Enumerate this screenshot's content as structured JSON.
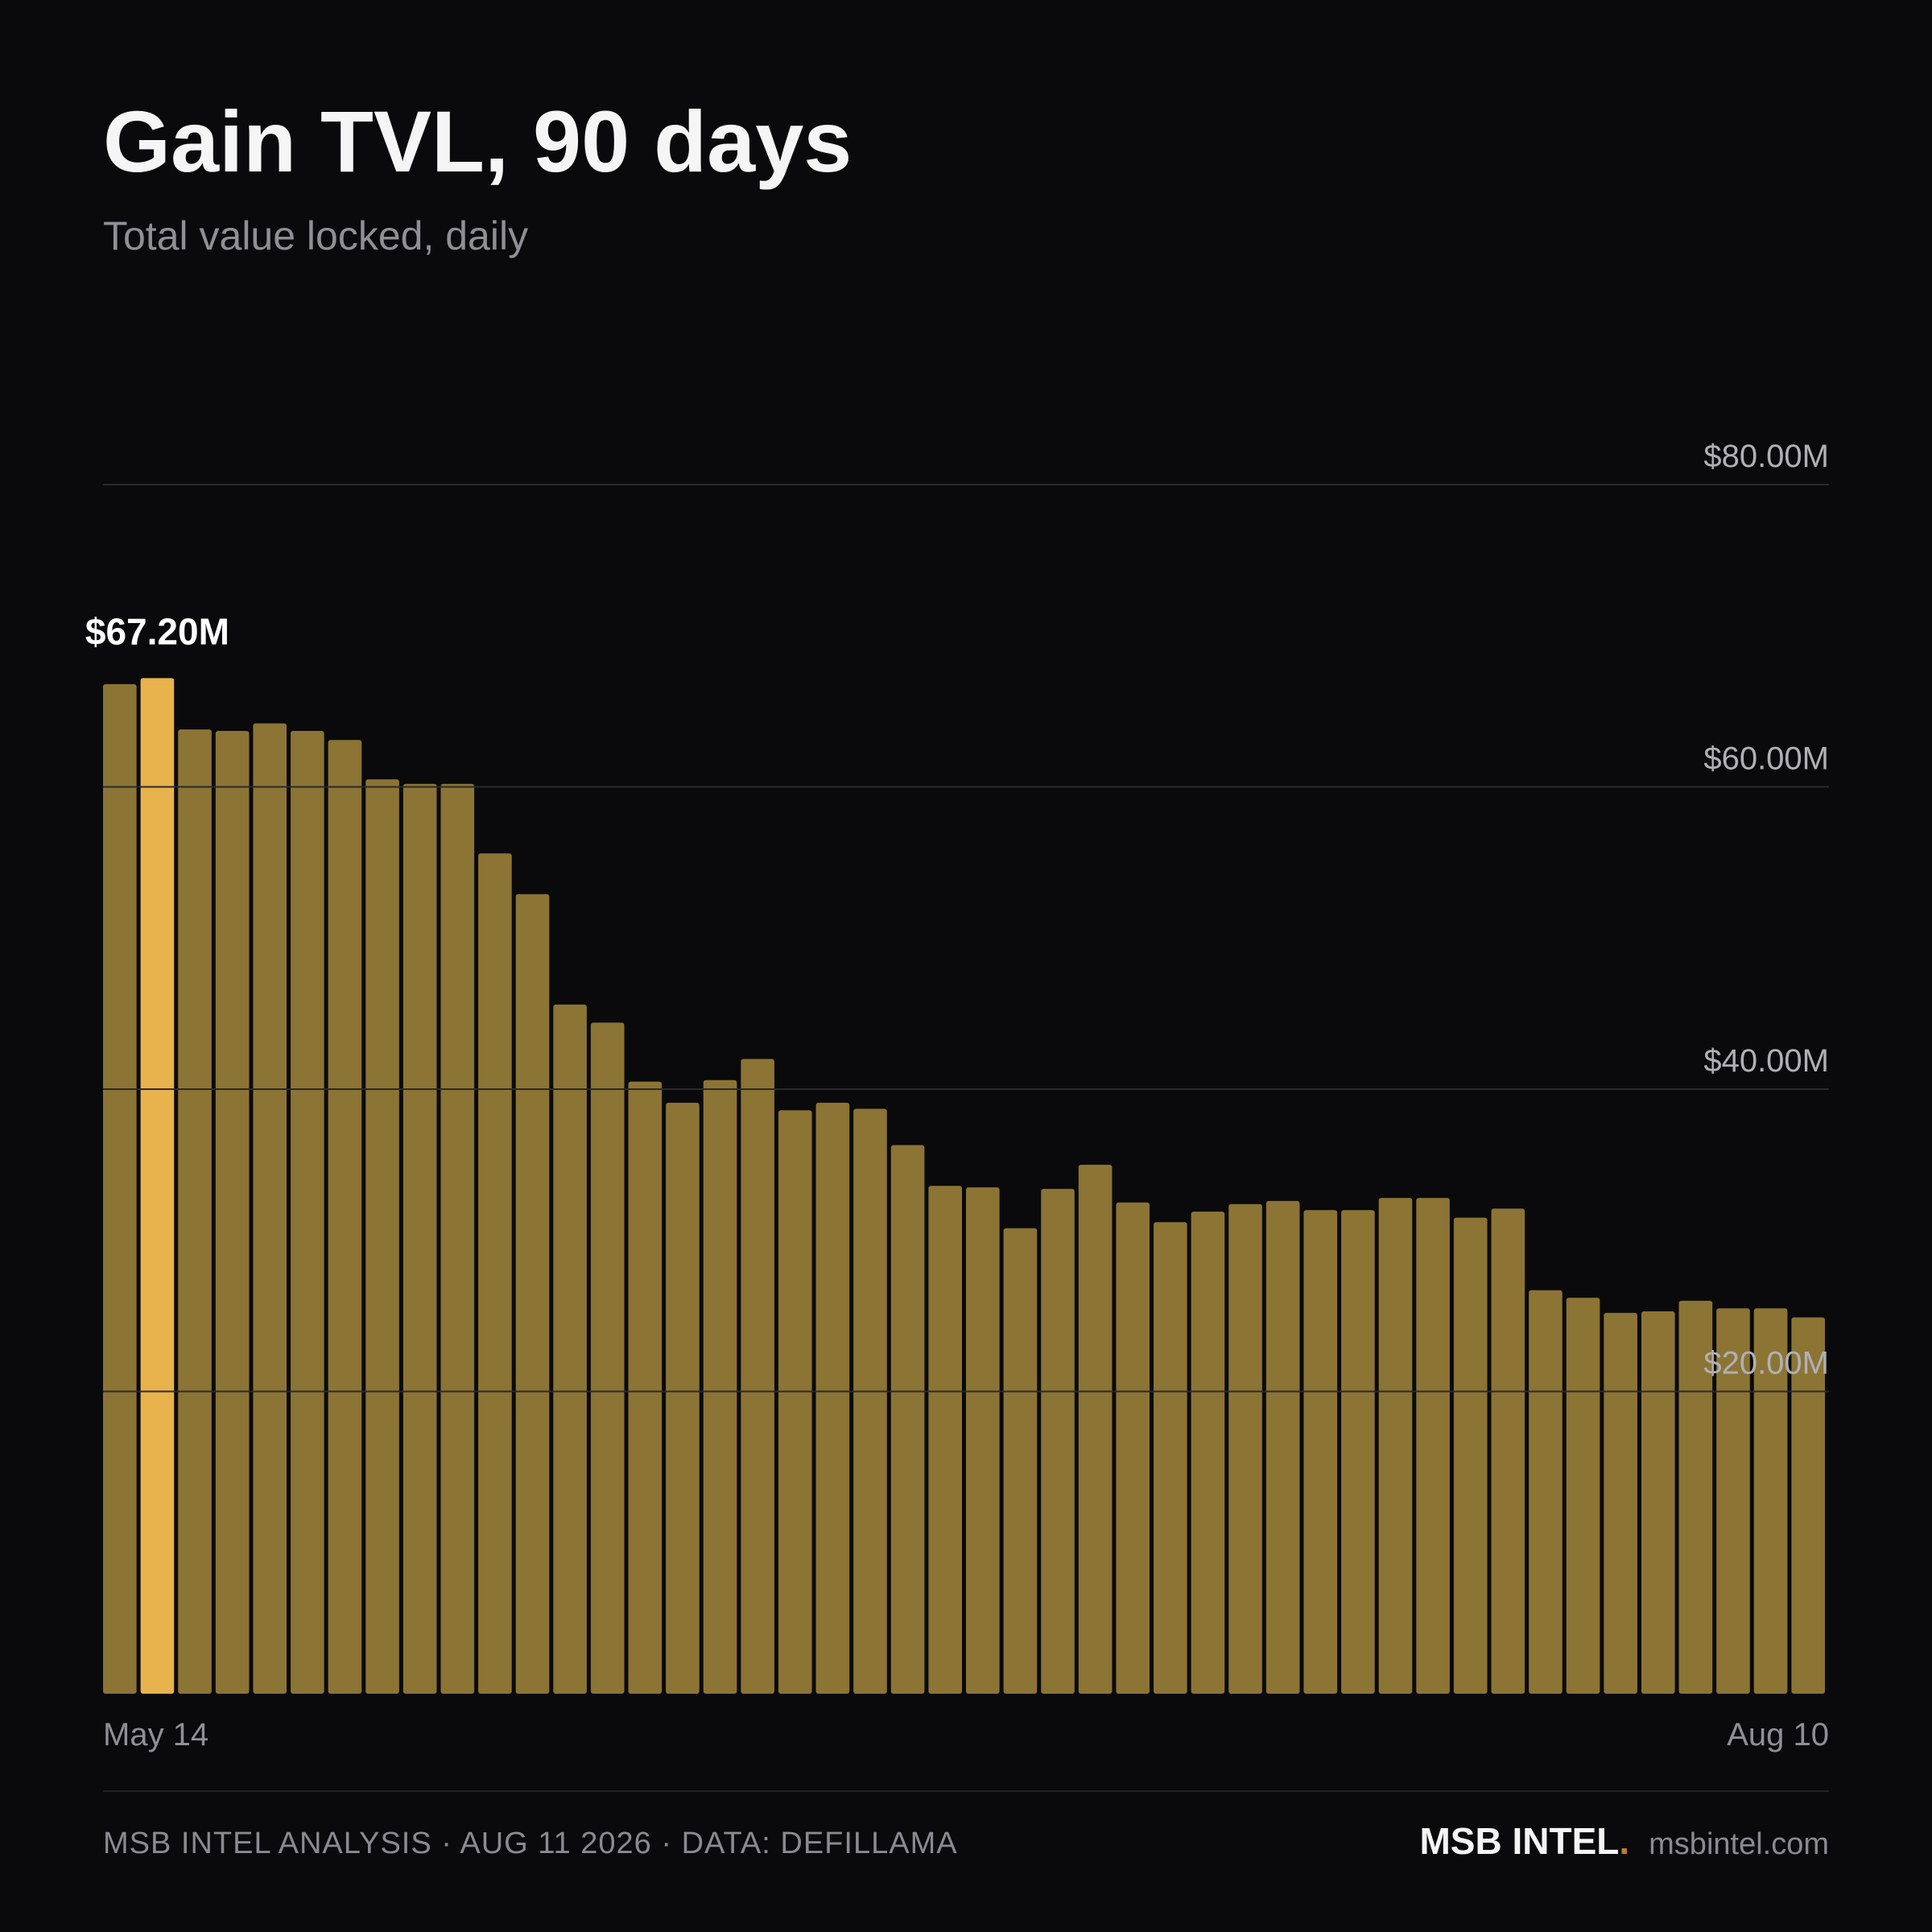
{
  "header": {
    "title": "Gain TVL, 90 days",
    "subtitle": "Total value locked, daily"
  },
  "colors": {
    "background": "#0a0a0c",
    "bar": "#8c7434",
    "bar_highlight": "#e8b24c",
    "grid": "#2a2a2e",
    "tick_label": "#b0b0b5"
  },
  "chart_data": {
    "type": "bar",
    "title": "Gain TVL, 90 days",
    "subtitle": "Total value locked, daily",
    "xlabel": "",
    "ylabel": "",
    "ylim": [
      0,
      80
    ],
    "y_unit": "$M",
    "y_ticks": [
      20,
      40,
      60,
      80
    ],
    "y_tick_labels": [
      "$20.00M",
      "$40.00M",
      "$60.00M",
      "$80.00M"
    ],
    "x_tick_labels": [
      "May 14",
      "Aug 10"
    ],
    "grid": true,
    "highlight_index": 1,
    "highlight_label": "$67.20M",
    "values": [
      66.8,
      67.2,
      63.8,
      63.7,
      64.2,
      63.7,
      63.1,
      60.5,
      60.2,
      60.2,
      55.6,
      52.9,
      45.6,
      44.4,
      40.5,
      39.1,
      40.6,
      42.0,
      38.6,
      39.1,
      38.7,
      36.3,
      33.6,
      33.5,
      30.8,
      33.4,
      35.0,
      32.5,
      31.2,
      31.9,
      32.4,
      32.6,
      32.0,
      32.0,
      32.8,
      32.8,
      31.5,
      32.1,
      26.7,
      26.2,
      25.2,
      25.3,
      26.0,
      25.5,
      25.5,
      24.9
    ]
  },
  "footer": {
    "left": "MSB INTEL ANALYSIS · AUG 11 2026 · DATA: DEFILLAMA",
    "brand": "MSB INTEL",
    "brand_dot": ".",
    "url": "msbintel.com"
  }
}
